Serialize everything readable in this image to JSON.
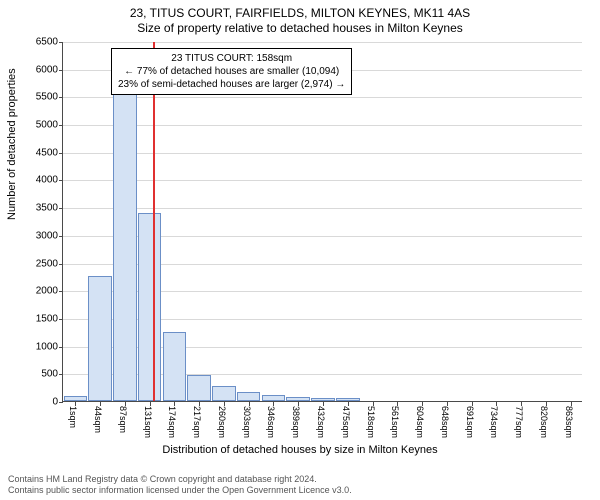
{
  "title": {
    "main": "23, TITUS COURT, FAIRFIELDS, MILTON KEYNES, MK11 4AS",
    "sub": "Size of property relative to detached houses in Milton Keynes",
    "fontsize": 12
  },
  "chart": {
    "type": "histogram",
    "background_color": "#ffffff",
    "grid_color": "#d9d9d9",
    "axis_color": "#4a4a4a",
    "bar_fill": "#d4e2f4",
    "bar_border": "#6b8fc7",
    "ref_line_color": "#e03030",
    "ref_line_x_index": 3.65,
    "yaxis": {
      "title": "Number of detached properties",
      "min": 0,
      "max": 6500,
      "tick_step": 500,
      "label_fontsize": 10,
      "title_fontsize": 11
    },
    "xaxis": {
      "title": "Distribution of detached houses by size in Milton Keynes",
      "labels": [
        "1sqm",
        "44sqm",
        "87sqm",
        "131sqm",
        "174sqm",
        "217sqm",
        "260sqm",
        "303sqm",
        "346sqm",
        "389sqm",
        "432sqm",
        "475sqm",
        "518sqm",
        "561sqm",
        "604sqm",
        "648sqm",
        "691sqm",
        "734sqm",
        "777sqm",
        "820sqm",
        "863sqm"
      ],
      "label_fontsize": 9,
      "title_fontsize": 11
    },
    "bars": [
      95,
      2250,
      5550,
      3400,
      1250,
      470,
      280,
      170,
      110,
      80,
      60,
      50,
      0,
      0,
      0,
      0,
      0,
      0,
      0,
      0,
      0
    ],
    "annotation": {
      "lines": [
        "23 TITUS COURT: 158sqm",
        "← 77% of detached houses are smaller (10,094)",
        "23% of semi-detached houses are larger (2,974) →"
      ],
      "border_color": "#000000",
      "fontsize": 10
    }
  },
  "footer": {
    "line1": "Contains HM Land Registry data © Crown copyright and database right 2024.",
    "line2": "Contains public sector information licensed under the Open Government Licence v3.0.",
    "fontsize": 9,
    "color": "#555555"
  }
}
